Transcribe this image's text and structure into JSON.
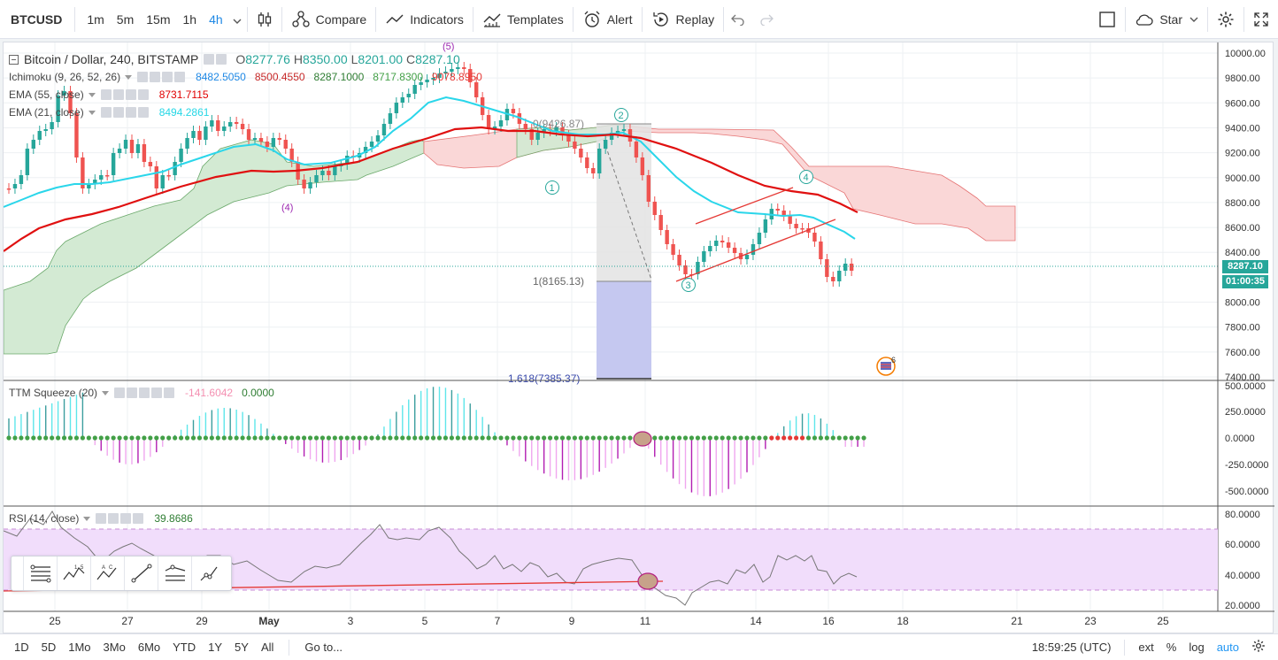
{
  "toolbar": {
    "symbol": "BTCUSD",
    "intervals": [
      "1m",
      "5m",
      "15m",
      "1h",
      "4h"
    ],
    "active_interval": "4h",
    "compare": "Compare",
    "indicators": "Indicators",
    "templates": "Templates",
    "alert": "Alert",
    "replay": "Replay",
    "star": "Star"
  },
  "legend": {
    "title": "Bitcoin / Dollar, 240, BITSTAMP",
    "open_label": "O",
    "open": "8277.76",
    "high_label": "H",
    "high": "8350.00",
    "low_label": "L",
    "low": "8201.00",
    "close_label": "C",
    "close": "8287.10",
    "ichimoku": {
      "name": "Ichimoku (9, 26, 52, 26)",
      "v1": "8482.5050",
      "v2": "8500.4550",
      "v3": "8287.1000",
      "v4": "8717.8300",
      "v5": "9078.8950"
    },
    "ema55": {
      "name": "EMA (55, close)",
      "v": "8731.7115"
    },
    "ema21": {
      "name": "EMA (21, close)",
      "v": "8494.2861"
    },
    "ttm": {
      "name": "TTM Squeeze (20)",
      "v1": "-141.6042",
      "v2": "0.0000"
    },
    "rsi": {
      "name": "RSI (14, close)",
      "v": "39.8686"
    }
  },
  "price_scale": {
    "labels": [
      "10000.00",
      "9800.00",
      "9600.00",
      "9400.00",
      "9200.00",
      "9000.00",
      "8800.00",
      "8600.00",
      "8400.00",
      "8000.00",
      "7800.00",
      "7600.00",
      "7400.00"
    ],
    "last_price": "8287.10",
    "countdown": "01:00:35"
  },
  "ttm_scale": [
    "500.0000",
    "250.0000",
    "0.0000",
    "-250.0000",
    "-500.0000"
  ],
  "rsi_scale": [
    "80.0000",
    "60.0000",
    "40.0000",
    "20.0000"
  ],
  "time_axis": [
    "25",
    "27",
    "29",
    "May",
    "3",
    "5",
    "7",
    "9",
    "11",
    "14",
    "16",
    "18",
    "21",
    "23",
    "25"
  ],
  "annotations": {
    "wave_labels": [
      "(5)",
      "(4)",
      "1",
      "2",
      "3",
      "4"
    ],
    "fib_0": "0(9426.87)",
    "fib_1": "1(8165.13)",
    "fib_1618": "1.618(7385.37)",
    "event_count": "6"
  },
  "bottom": {
    "ranges": [
      "1D",
      "5D",
      "1Mo",
      "3Mo",
      "6Mo",
      "YTD",
      "1Y",
      "5Y",
      "All"
    ],
    "goto": "Go to...",
    "clock": "18:59:25 (UTC)",
    "ext": "ext",
    "percent": "%",
    "log": "log",
    "auto": "auto"
  },
  "colors": {
    "up": "#26a69a",
    "down": "#ef5350",
    "ema55": "#e00000",
    "ema21": "#26d7e6",
    "cloud_green": "#cde7cd",
    "cloud_red": "#f9d1d1",
    "rsi_band": "#f1ddfb"
  }
}
